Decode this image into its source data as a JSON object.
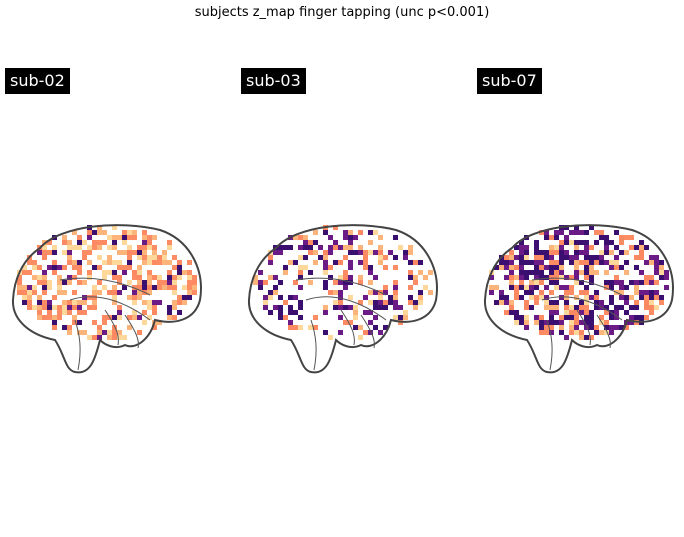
{
  "figure": {
    "title": "subjects z_map finger tapping (unc p<0.001)"
  },
  "colors": {
    "label_bg": "#000000",
    "label_text": "#ffffff",
    "outline": "#444444",
    "cmap": [
      "#3b0f70",
      "#6a1b85",
      "#fc8961",
      "#fb8c63",
      "#fcb47a",
      "#fdd89a"
    ]
  },
  "panels": [
    {
      "label": "sub-02",
      "density": 0.5,
      "dark_ratio": 0.18,
      "seed": 2
    },
    {
      "label": "sub-03",
      "density": 0.35,
      "dark_ratio": 0.55,
      "seed": 3
    },
    {
      "label": "sub-07",
      "density": 0.62,
      "dark_ratio": 0.55,
      "seed": 7
    }
  ]
}
